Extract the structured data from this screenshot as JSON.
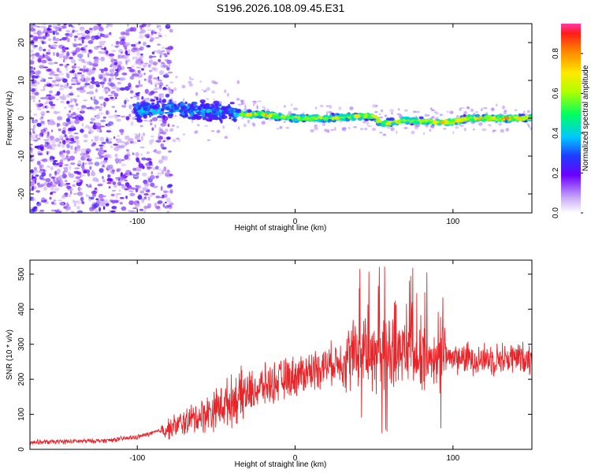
{
  "title": "S196.2026.108.09.45.E31",
  "colors": {
    "snr_line": "#e8262a",
    "frame": "#000000",
    "scatter_base": "#7a1fe0"
  },
  "chart_data": [
    {
      "type": "heatmap",
      "xlabel": "Height of straight line (km)",
      "ylabel": "Frequency (Hz)",
      "xlim": [
        -168,
        150
      ],
      "ylim": [
        -25,
        25
      ],
      "xticks": [
        -100,
        0,
        100
      ],
      "yticks": [
        -20,
        -10,
        0,
        10,
        20
      ],
      "colorbar": {
        "label": "Normalized spectral amplitude",
        "range": [
          0.0,
          0.95
        ],
        "ticks": [
          0.0,
          0.2,
          0.4,
          0.6,
          0.8
        ],
        "placement": "right"
      },
      "ridge": {
        "description": "dominant frequency track",
        "x": [
          -100,
          -80,
          -60,
          -40,
          -30,
          -20,
          0,
          20,
          40,
          50,
          55,
          70,
          90,
          100,
          110,
          130,
          150
        ],
        "y": [
          2,
          2.5,
          2,
          1.5,
          1,
          1,
          0,
          0,
          0.5,
          0.5,
          -1.5,
          -0.5,
          -1,
          -1,
          0,
          0,
          0
        ]
      }
    },
    {
      "type": "line",
      "xlabel": "Height of straight line (km)",
      "ylabel": "SNR (10 * v/v)",
      "xlim": [
        -168,
        150
      ],
      "ylim": [
        0,
        540
      ],
      "xticks": [
        -100,
        0,
        100
      ],
      "yticks": [
        0,
        100,
        200,
        300,
        400,
        500
      ],
      "envelope": {
        "x": [
          -168,
          -120,
          -100,
          -80,
          -60,
          -40,
          -20,
          0,
          20,
          40,
          60,
          80,
          100,
          120,
          150
        ],
        "y": [
          20,
          25,
          35,
          60,
          95,
          140,
          180,
          210,
          240,
          275,
          270,
          265,
          262,
          258,
          262
        ]
      }
    }
  ]
}
